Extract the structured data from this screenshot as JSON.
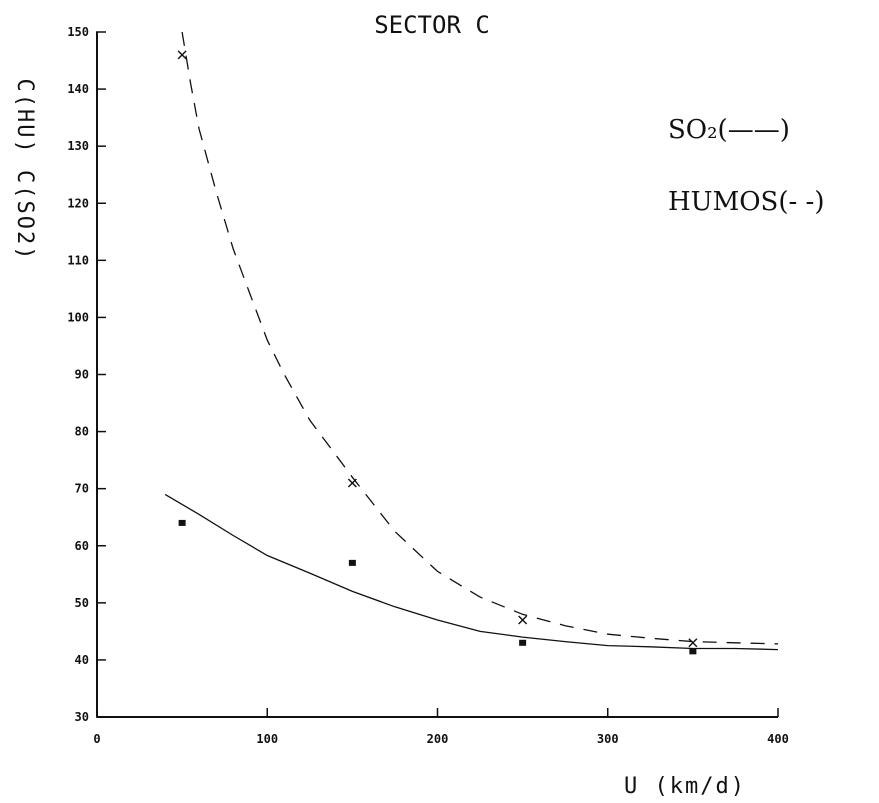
{
  "chart_data": {
    "type": "scatter",
    "title": "SECTOR C",
    "xlabel": "U  (km/d)",
    "ylabel": "C(HU) C(SO2)",
    "xlim": [
      0,
      400
    ],
    "ylim": [
      30,
      150
    ],
    "xticks": [
      "0",
      "100",
      "200",
      "300",
      "400"
    ],
    "yticks": [
      "30",
      "40",
      "50",
      "60",
      "70",
      "80",
      "90",
      "100",
      "110",
      "120",
      "130",
      "140",
      "150"
    ],
    "grid": false,
    "legend_position": "top-right",
    "legend_entries": [
      {
        "label": "SO₂(——)",
        "style": "solid"
      },
      {
        "label": "HUMOS(- -)",
        "style": "dashed"
      }
    ],
    "series": [
      {
        "name": "SO2",
        "style": "solid",
        "marker": "square",
        "points": [
          [
            50,
            64
          ],
          [
            150,
            57
          ],
          [
            250,
            43
          ],
          [
            350,
            41.5
          ]
        ],
        "fit_curve": [
          [
            40,
            69
          ],
          [
            60,
            65.5
          ],
          [
            80,
            61.8
          ],
          [
            100,
            58.3
          ],
          [
            125,
            55.2
          ],
          [
            150,
            52
          ],
          [
            175,
            49.3
          ],
          [
            200,
            47
          ],
          [
            225,
            45
          ],
          [
            250,
            44
          ],
          [
            275,
            43.2
          ],
          [
            300,
            42.5
          ],
          [
            325,
            42.3
          ],
          [
            350,
            42
          ],
          [
            375,
            42
          ],
          [
            400,
            41.8
          ]
        ]
      },
      {
        "name": "HUMOS",
        "style": "dashed",
        "marker": "x",
        "points": [
          [
            50,
            146
          ],
          [
            150,
            71
          ],
          [
            250,
            47
          ],
          [
            350,
            43
          ]
        ],
        "fit_curve": [
          [
            50,
            150
          ],
          [
            55,
            141
          ],
          [
            60,
            133
          ],
          [
            70,
            122
          ],
          [
            80,
            112
          ],
          [
            90,
            104
          ],
          [
            100,
            96
          ],
          [
            110,
            90
          ],
          [
            125,
            82
          ],
          [
            140,
            76
          ],
          [
            150,
            72
          ],
          [
            175,
            62.5
          ],
          [
            200,
            55.5
          ],
          [
            225,
            51
          ],
          [
            250,
            48
          ],
          [
            275,
            46
          ],
          [
            300,
            44.5
          ],
          [
            325,
            43.8
          ],
          [
            350,
            43.2
          ],
          [
            375,
            43
          ],
          [
            400,
            42.8
          ]
        ]
      }
    ]
  }
}
